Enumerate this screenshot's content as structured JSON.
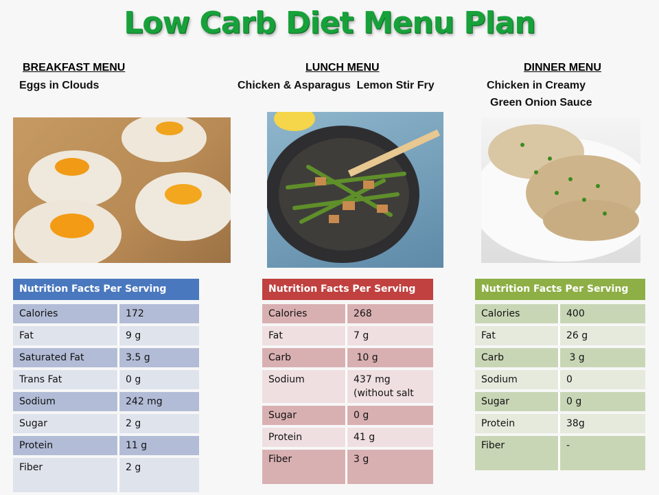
{
  "title": "Low Carb Diet Menu Plan",
  "colors": {
    "title": "#17a13a",
    "breakfast_header": "#4a78be",
    "lunch_header": "#c0413f",
    "dinner_header": "#8daf45"
  },
  "breakfast": {
    "heading": "BREAKFAST MENU",
    "dish": "Eggs in Clouds",
    "image": "eggs-in-clouds-photo",
    "table_header": "Nutrition Facts  Per Serving",
    "rows": [
      {
        "label": "Calories",
        "value": "172"
      },
      {
        "label": "Fat",
        "value": "9 g"
      },
      {
        "label": "Saturated Fat",
        "value": "3.5 g"
      },
      {
        "label": "Trans Fat",
        "value": "0 g"
      },
      {
        "label": "Sodium",
        "value": "242 mg"
      },
      {
        "label": "Sugar",
        "value": "2 g"
      },
      {
        "label": "Protein",
        "value": "11 g"
      },
      {
        "label": "Fiber",
        "value": "2 g"
      }
    ]
  },
  "lunch": {
    "heading": "LUNCH MENU",
    "dish": "Chicken & Asparagus  Lemon Stir Fry",
    "image": "stir-fry-pan-photo",
    "table_header": "Nutrition Facts  Per Serving",
    "rows": [
      {
        "label": "Calories",
        "value": "268"
      },
      {
        "label": "Fat",
        "value": "7 g"
      },
      {
        "label": "Carb",
        "value": " 10 g"
      },
      {
        "label": "Sodium",
        "value": "437 mg (without salt"
      },
      {
        "label": "Sugar",
        "value": "0 g"
      },
      {
        "label": "Protein",
        "value": "41 g"
      },
      {
        "label": "Fiber",
        "value": "3 g"
      }
    ]
  },
  "dinner": {
    "heading": "DINNER MENU",
    "dish_line1": "Chicken in Creamy",
    "dish_line2": "Green Onion Sauce",
    "image": "chicken-cream-sauce-photo",
    "table_header": "Nutrition Facts  Per Serving",
    "rows": [
      {
        "label": "Calories",
        "value": "400"
      },
      {
        "label": "Fat",
        "value": "26 g"
      },
      {
        "label": "Carb",
        "value": " 3 g"
      },
      {
        "label": "Sodium",
        "value": "0"
      },
      {
        "label": "Sugar",
        "value": "0 g"
      },
      {
        "label": "Protein",
        "value": "38g"
      },
      {
        "label": "Fiber",
        "value": "-"
      }
    ]
  }
}
